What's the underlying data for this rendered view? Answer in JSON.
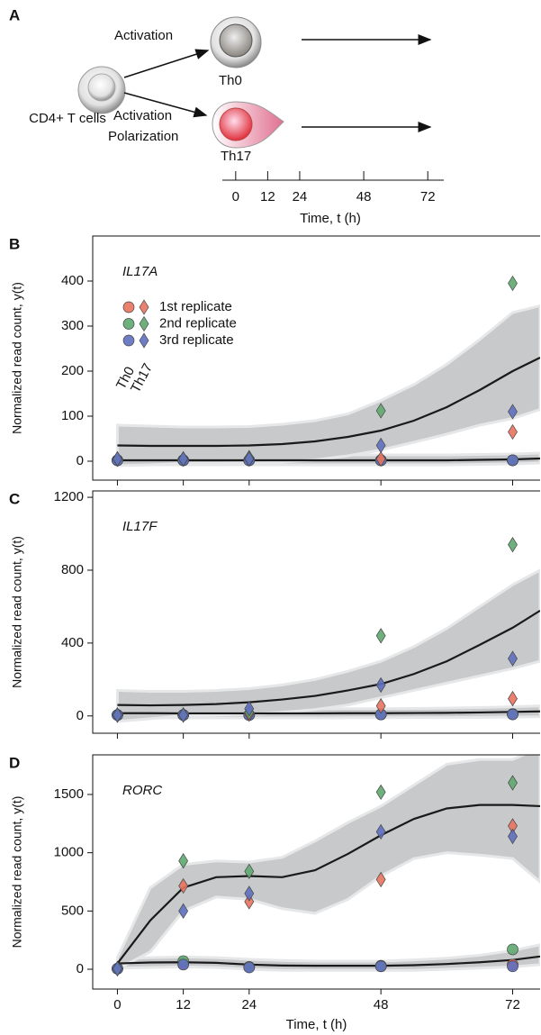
{
  "panel_a": {
    "label": "A",
    "cell": "CD4+ T cells",
    "activation_top": "Activation",
    "activation_bottom": "Activation",
    "polarization": "Polarization",
    "th0": "Th0",
    "th17": "Th17",
    "timeline": {
      "ticks": [
        0,
        12,
        24,
        48,
        72
      ],
      "lim": [
        -5,
        78
      ],
      "label": "Time, t (h)"
    }
  },
  "chart_data": [
    {
      "type": "scatter",
      "panel": "B",
      "title": "IL17A",
      "y_label": "Normalized read count, y(t)",
      "xlim": [
        -4.5,
        77
      ],
      "xticks": [
        0,
        12,
        24,
        48,
        72
      ],
      "xtick_labels": false,
      "ylim": [
        -42,
        500
      ],
      "yticks": [
        0,
        100,
        200,
        300,
        400
      ],
      "markers": [
        {
          "label": "Th0",
          "shape": "circle"
        },
        {
          "label": "Th17",
          "shape": "diamond"
        }
      ],
      "legend": true,
      "x": [
        0,
        12,
        24,
        48,
        72
      ],
      "series": [
        {
          "name": "1st replicate",
          "color": "#e8735f",
          "values": [
            [
              2,
              2,
              2,
              2,
              2
            ],
            [
              5,
              5,
              5,
              5,
              65
            ]
          ]
        },
        {
          "name": "2nd replicate",
          "color": "#5fa86f",
          "values": [
            [
              2,
              2,
              2,
              2,
              2
            ],
            [
              5,
              5,
              8,
              112,
              395
            ]
          ]
        },
        {
          "name": "3rd replicate",
          "color": "#5f6fbf",
          "values": [
            [
              2,
              2,
              2,
              2,
              2
            ],
            [
              5,
              5,
              5,
              35,
              110
            ]
          ]
        }
      ],
      "fit_x": [
        0,
        6,
        12,
        18,
        24,
        30,
        36,
        42,
        48,
        54,
        60,
        66,
        72,
        77
      ],
      "band_color": "#c8c9ca",
      "line_color": "#1a1a1a",
      "fits": [
        {
          "y": [
            2,
            2,
            2,
            2,
            2,
            2,
            2,
            2,
            2,
            2,
            2,
            3,
            4,
            6
          ],
          "upper": [
            14,
            14,
            14,
            14,
            14,
            14,
            14,
            14,
            14,
            14,
            14,
            15,
            16,
            18
          ],
          "lower": [
            -8,
            -8,
            -8,
            -8,
            -8,
            -8,
            -8,
            -8,
            -8,
            -8,
            -8,
            -7,
            -6,
            -4
          ]
        },
        {
          "y": [
            35,
            34,
            34,
            34,
            35,
            38,
            44,
            54,
            68,
            90,
            120,
            158,
            200,
            230
          ],
          "upper": [
            80,
            78,
            76,
            76,
            77,
            82,
            90,
            105,
            135,
            170,
            215,
            270,
            330,
            345
          ],
          "lower": [
            -10,
            -8,
            -5,
            -5,
            -4,
            -2,
            3,
            12,
            25,
            42,
            60,
            80,
            95,
            115
          ]
        }
      ]
    },
    {
      "type": "scatter",
      "panel": "C",
      "title": "IL17F",
      "y_label": "Normalized read count, y(t)",
      "xlim": [
        -4.5,
        77
      ],
      "xticks": [
        0,
        12,
        24,
        48,
        72
      ],
      "xtick_labels": false,
      "ylim": [
        -95,
        1235
      ],
      "yticks": [
        0,
        400,
        800,
        1200
      ],
      "markers": [
        {
          "shape": "circle"
        },
        {
          "shape": "diamond"
        }
      ],
      "legend": false,
      "x": [
        0,
        12,
        24,
        48,
        72
      ],
      "series": [
        {
          "color": "#e8735f",
          "values": [
            [
              5,
              5,
              5,
              8,
              10
            ],
            [
              5,
              5,
              10,
              55,
              95
            ]
          ]
        },
        {
          "color": "#5fa86f",
          "values": [
            [
              5,
              5,
              5,
              8,
              10
            ],
            [
              5,
              5,
              20,
              440,
              940
            ]
          ]
        },
        {
          "color": "#5f6fbf",
          "values": [
            [
              5,
              5,
              5,
              8,
              8
            ],
            [
              5,
              5,
              40,
              170,
              315
            ]
          ]
        }
      ],
      "fit_x": [
        0,
        6,
        12,
        18,
        24,
        30,
        36,
        42,
        48,
        54,
        60,
        66,
        72,
        77
      ],
      "band_color": "#c8c9ca",
      "line_color": "#1a1a1a",
      "fits": [
        {
          "y": [
            15,
            15,
            14,
            14,
            14,
            14,
            14,
            15,
            15,
            16,
            17,
            19,
            22,
            25
          ],
          "upper": [
            40,
            40,
            39,
            39,
            39,
            39,
            39,
            40,
            40,
            41,
            43,
            46,
            50,
            55
          ],
          "lower": [
            -10,
            -10,
            -11,
            -11,
            -11,
            -11,
            -11,
            -10,
            -10,
            -9,
            -9,
            -8,
            -6,
            -5
          ]
        },
        {
          "y": [
            60,
            58,
            60,
            65,
            75,
            90,
            110,
            140,
            175,
            230,
            300,
            390,
            484,
            578
          ],
          "upper": [
            140,
            135,
            135,
            140,
            150,
            170,
            200,
            245,
            300,
            380,
            480,
            600,
            720,
            800
          ],
          "lower": [
            -30,
            -15,
            0,
            5,
            10,
            20,
            35,
            60,
            100,
            140,
            180,
            220,
            260,
            300
          ]
        }
      ]
    },
    {
      "type": "scatter",
      "panel": "D",
      "title": "RORC",
      "y_label": "Normalized read count, y(t)",
      "x_label": "Time, t (h)",
      "xlim": [
        -4.5,
        77
      ],
      "xticks": [
        0,
        12,
        24,
        48,
        72
      ],
      "xtick_labels": true,
      "ylim": [
        -170,
        1840
      ],
      "yticks": [
        0,
        500,
        1000,
        1500
      ],
      "markers": [
        {
          "shape": "circle"
        },
        {
          "shape": "diamond"
        }
      ],
      "legend": false,
      "x": [
        0,
        12,
        24,
        48,
        72
      ],
      "series": [
        {
          "color": "#e8735f",
          "values": [
            [
              5,
              50,
              20,
              30,
              40
            ],
            [
              5,
              715,
              580,
              770,
              1230
            ]
          ]
        },
        {
          "color": "#5fa86f",
          "values": [
            [
              5,
              70,
              20,
              25,
              170
            ],
            [
              5,
              930,
              840,
              1520,
              1600
            ]
          ]
        },
        {
          "color": "#5f6fbf",
          "values": [
            [
              5,
              40,
              15,
              25,
              25
            ],
            [
              5,
              500,
              650,
              1180,
              1140
            ]
          ]
        }
      ],
      "fit_x": [
        0,
        6,
        12,
        18,
        24,
        30,
        36,
        42,
        48,
        54,
        60,
        66,
        72,
        77
      ],
      "band_color": "#c8c9ca",
      "line_color": "#1a1a1a",
      "fits": [
        {
          "y": [
            50,
            58,
            60,
            55,
            40,
            32,
            30,
            30,
            30,
            35,
            45,
            60,
            80,
            110
          ],
          "upper": [
            90,
            100,
            105,
            100,
            85,
            75,
            70,
            70,
            70,
            80,
            95,
            120,
            160,
            210
          ],
          "lower": [
            10,
            15,
            20,
            15,
            0,
            -10,
            -10,
            -10,
            -10,
            -10,
            0,
            10,
            20,
            40
          ]
        },
        {
          "y": [
            50,
            420,
            700,
            790,
            800,
            790,
            850,
            990,
            1150,
            1290,
            1380,
            1410,
            1410,
            1400
          ],
          "upper": [
            100,
            700,
            900,
            930,
            920,
            960,
            1100,
            1260,
            1400,
            1580,
            1760,
            1800,
            1800,
            1900
          ],
          "lower": [
            0,
            150,
            500,
            620,
            600,
            520,
            480,
            600,
            800,
            950,
            1000,
            980,
            950,
            750
          ]
        }
      ]
    }
  ]
}
